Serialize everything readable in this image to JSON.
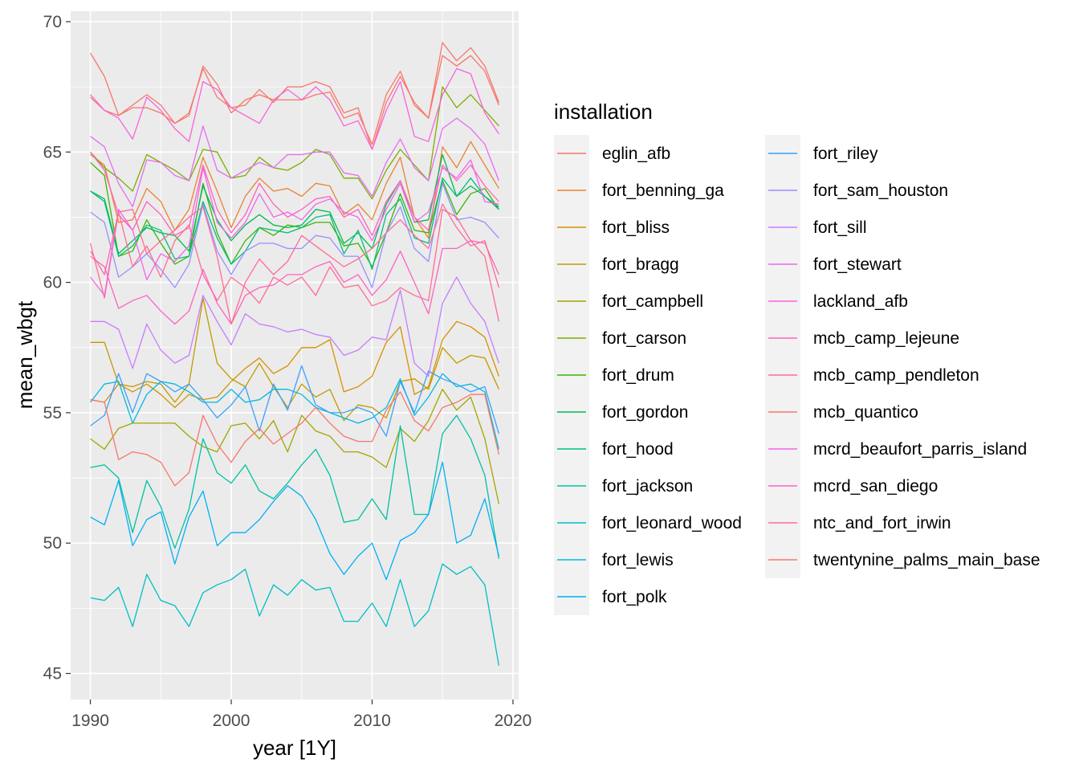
{
  "chart_data": {
    "type": "line",
    "xlabel": "year [1Y]",
    "ylabel": "mean_wbgt",
    "xlim": [
      1988.6,
      2020.4
    ],
    "ylim": [
      44.0,
      70.4
    ],
    "x_ticks": [
      1990,
      2000,
      2010,
      2020
    ],
    "y_ticks": [
      45,
      50,
      55,
      60,
      65,
      70
    ],
    "grid": true,
    "legend_title": "installation",
    "legend_position": "right",
    "x": [
      1990,
      1991,
      1992,
      1993,
      1994,
      1995,
      1996,
      1997,
      1998,
      1999,
      2000,
      2001,
      2002,
      2003,
      2004,
      2005,
      2006,
      2007,
      2008,
      2009,
      2010,
      2011,
      2012,
      2013,
      2014,
      2015,
      2016,
      2017,
      2018,
      2019
    ],
    "series": [
      {
        "name": "eglin_afb",
        "color": "#F8766D",
        "values": [
          67.1,
          66.6,
          66.4,
          66.8,
          67.2,
          66.8,
          66.1,
          66.5,
          68.2,
          67.1,
          66.7,
          66.8,
          67.4,
          66.9,
          67.5,
          67.5,
          67.7,
          67.5,
          66.5,
          66.7,
          65.1,
          66.9,
          67.9,
          66.9,
          66.3,
          69.2,
          68.5,
          69.0,
          68.3,
          66.9
        ]
      },
      {
        "name": "fort_benning_ga",
        "color": "#EA8331",
        "values": [
          64.9,
          64.5,
          62.3,
          62.4,
          63.6,
          63.1,
          62.0,
          62.8,
          64.8,
          63.5,
          62.1,
          63.3,
          64.0,
          63.5,
          63.6,
          63.3,
          63.8,
          63.7,
          62.6,
          63.0,
          62.4,
          63.8,
          64.8,
          62.5,
          61.7,
          65.2,
          64.4,
          65.4,
          64.5,
          63.6
        ]
      },
      {
        "name": "fort_bliss",
        "color": "#D89000",
        "values": [
          55.5,
          55.4,
          56.1,
          55.8,
          56.1,
          55.7,
          55.2,
          55.7,
          55.5,
          55.6,
          56.2,
          56.7,
          57.1,
          56.5,
          56.8,
          57.5,
          57.5,
          57.8,
          55.8,
          56.0,
          56.4,
          57.7,
          58.3,
          55.7,
          56.0,
          57.8,
          58.5,
          58.3,
          57.9,
          56.4
        ]
      },
      {
        "name": "fort_bragg",
        "color": "#C09B00",
        "values": [
          57.7,
          57.7,
          56.1,
          56.0,
          56.2,
          56.1,
          55.4,
          56.1,
          59.4,
          56.9,
          56.3,
          56.0,
          56.9,
          56.0,
          55.2,
          56.1,
          55.6,
          55.9,
          54.7,
          55.3,
          55.2,
          54.8,
          56.2,
          56.3,
          55.9,
          57.5,
          56.9,
          57.2,
          57.1,
          55.9
        ]
      },
      {
        "name": "fort_campbell",
        "color": "#A3A500",
        "values": [
          54.0,
          53.6,
          54.4,
          54.6,
          54.6,
          54.6,
          54.6,
          54.1,
          53.7,
          53.5,
          54.5,
          54.6,
          54.0,
          54.7,
          53.5,
          54.9,
          54.3,
          54.1,
          53.5,
          53.5,
          53.3,
          52.9,
          54.4,
          53.9,
          54.7,
          55.9,
          55.1,
          55.6,
          54.0,
          51.5
        ]
      },
      {
        "name": "fort_carson",
        "color": "#7CAE00",
        "values": [
          65.0,
          64.4,
          64.0,
          63.5,
          64.9,
          64.6,
          64.3,
          63.9,
          65.1,
          65.0,
          64.0,
          64.1,
          64.8,
          64.4,
          64.3,
          64.6,
          65.1,
          64.9,
          64.0,
          64.0,
          63.2,
          64.3,
          65.1,
          64.5,
          63.9,
          67.5,
          66.7,
          67.2,
          66.6,
          66.0
        ]
      },
      {
        "name": "fort_drum",
        "color": "#39B600",
        "values": [
          64.6,
          64.1,
          61.0,
          61.2,
          62.4,
          61.5,
          60.7,
          61.0,
          63.8,
          61.9,
          60.7,
          61.6,
          62.1,
          61.8,
          62.2,
          62.1,
          62.3,
          62.3,
          61.4,
          61.5,
          60.6,
          61.9,
          63.4,
          62.0,
          61.9,
          63.9,
          62.6,
          63.4,
          63.6,
          62.8
        ]
      },
      {
        "name": "fort_gordon",
        "color": "#00BB4E",
        "values": [
          63.5,
          63.2,
          61.1,
          61.6,
          62.1,
          61.9,
          61.8,
          61.2,
          63.7,
          62.4,
          61.6,
          62.2,
          62.6,
          62.2,
          62.1,
          62.2,
          62.8,
          62.7,
          61.5,
          61.9,
          61.3,
          63.0,
          63.9,
          62.3,
          62.4,
          64.9,
          63.3,
          63.7,
          63.3,
          62.8
        ]
      },
      {
        "name": "fort_hood",
        "color": "#00BF7D",
        "values": [
          63.5,
          63.1,
          61.0,
          61.4,
          62.2,
          62.0,
          60.9,
          61.0,
          63.1,
          61.7,
          60.7,
          61.2,
          62.1,
          62.0,
          61.9,
          62.1,
          62.5,
          62.6,
          61.1,
          62.0,
          60.5,
          62.6,
          63.2,
          61.7,
          61.5,
          64.0,
          63.3,
          64.0,
          63.3,
          62.9
        ]
      },
      {
        "name": "fort_jackson",
        "color": "#00C1A3",
        "values": [
          52.9,
          53.0,
          52.5,
          50.4,
          52.4,
          51.4,
          49.8,
          51.3,
          54.0,
          52.7,
          52.3,
          53.0,
          52.0,
          51.7,
          52.3,
          53.0,
          53.6,
          52.6,
          50.8,
          50.9,
          51.7,
          50.9,
          54.5,
          51.1,
          51.1,
          54.2,
          54.9,
          54.0,
          52.6,
          49.4
        ]
      },
      {
        "name": "fort_leonard_wood",
        "color": "#00BFC4",
        "values": [
          47.9,
          47.8,
          48.3,
          46.8,
          48.8,
          47.8,
          47.6,
          46.8,
          48.1,
          48.4,
          48.6,
          49.0,
          47.2,
          48.4,
          48.0,
          48.6,
          48.2,
          48.3,
          47.0,
          47.0,
          47.7,
          46.8,
          48.6,
          46.8,
          47.4,
          49.2,
          48.8,
          49.1,
          48.4,
          45.3
        ]
      },
      {
        "name": "fort_lewis",
        "color": "#00BAE0",
        "values": [
          55.4,
          56.1,
          56.2,
          54.6,
          55.7,
          56.2,
          56.1,
          55.8,
          55.4,
          55.4,
          55.9,
          55.4,
          55.5,
          55.9,
          55.9,
          55.7,
          55.2,
          55.0,
          54.8,
          54.6,
          54.8,
          55.2,
          56.3,
          54.9,
          55.6,
          56.5,
          56.0,
          56.1,
          55.8,
          53.6
        ]
      },
      {
        "name": "fort_polk",
        "color": "#00B0F6",
        "values": [
          51.0,
          50.7,
          52.4,
          49.9,
          50.9,
          51.2,
          49.2,
          51.0,
          52.0,
          49.9,
          50.4,
          50.4,
          50.9,
          51.6,
          52.2,
          51.8,
          50.9,
          49.6,
          48.8,
          49.5,
          50.0,
          48.6,
          50.1,
          50.4,
          51.1,
          53.1,
          50.0,
          50.3,
          51.7,
          49.5
        ]
      },
      {
        "name": "fort_riley",
        "color": "#35A2FF",
        "values": [
          54.5,
          54.9,
          56.5,
          55.0,
          56.5,
          56.2,
          55.8,
          56.1,
          55.5,
          54.8,
          55.3,
          56.0,
          54.3,
          56.1,
          55.1,
          56.8,
          55.3,
          55.0,
          55.0,
          55.2,
          55.0,
          54.1,
          56.2,
          55.0,
          56.6,
          56.3,
          56.1,
          55.8,
          56.0,
          54.2
        ]
      },
      {
        "name": "fort_sam_houston",
        "color": "#9590FF",
        "values": [
          62.7,
          62.3,
          60.2,
          60.6,
          61.1,
          60.5,
          59.8,
          60.7,
          63.0,
          61.2,
          60.3,
          61.2,
          61.5,
          61.5,
          61.3,
          61.3,
          61.8,
          61.7,
          61.0,
          61.0,
          59.8,
          61.9,
          62.9,
          61.3,
          60.8,
          63.8,
          62.4,
          62.5,
          62.3,
          61.7
        ]
      },
      {
        "name": "fort_sill",
        "color": "#C77CFF",
        "values": [
          58.5,
          58.5,
          58.2,
          56.7,
          58.4,
          57.4,
          56.9,
          57.2,
          59.5,
          58.5,
          57.6,
          58.8,
          58.4,
          58.3,
          58.1,
          58.2,
          58.0,
          57.9,
          57.2,
          57.4,
          57.9,
          57.8,
          59.7,
          56.9,
          56.4,
          59.2,
          60.2,
          59.2,
          58.5,
          56.9
        ]
      },
      {
        "name": "fort_stewart",
        "color": "#E76BF3",
        "values": [
          65.6,
          65.2,
          63.8,
          62.9,
          64.7,
          64.6,
          64.1,
          63.9,
          66.0,
          64.3,
          64.0,
          64.3,
          64.6,
          64.4,
          64.9,
          64.9,
          65.0,
          65.0,
          64.2,
          64.1,
          63.3,
          64.6,
          65.5,
          64.4,
          63.9,
          65.9,
          66.3,
          65.9,
          65.3,
          63.9
        ]
      },
      {
        "name": "lackland_afb",
        "color": "#FA62DB",
        "values": [
          67.2,
          66.6,
          66.3,
          65.5,
          67.1,
          66.6,
          65.9,
          65.4,
          67.7,
          67.4,
          66.7,
          66.4,
          66.1,
          67.0,
          67.4,
          67.0,
          67.5,
          67.0,
          66.0,
          66.2,
          65.1,
          66.6,
          67.7,
          65.6,
          65.4,
          67.2,
          68.2,
          68.0,
          66.5,
          65.7
        ]
      },
      {
        "name": "mcb_camp_lejeune",
        "color": "#FF62BC",
        "values": [
          65.0,
          64.3,
          62.6,
          62.0,
          63.1,
          62.6,
          61.8,
          62.1,
          64.5,
          62.8,
          61.9,
          62.6,
          63.8,
          63.0,
          62.5,
          62.8,
          63.2,
          63.3,
          62.5,
          62.8,
          61.8,
          63.1,
          63.9,
          62.5,
          62.0,
          64.5,
          63.9,
          64.5,
          63.7,
          63.1
        ]
      },
      {
        "name": "mcb_camp_pendleton",
        "color": "#FF6C91",
        "values": [
          61.5,
          59.4,
          62.7,
          60.6,
          61.4,
          60.2,
          61.6,
          62.2,
          60.3,
          59.3,
          60.2,
          59.8,
          59.2,
          60.2,
          59.9,
          60.2,
          59.5,
          60.6,
          59.8,
          59.9,
          59.1,
          59.3,
          59.8,
          59.5,
          59.3,
          62.8,
          62.5,
          61.6,
          61.0,
          58.5
        ]
      },
      {
        "name": "mcb_quantico",
        "color": "#F8766D",
        "values": [
          55.5,
          55.4,
          53.2,
          53.5,
          53.4,
          53.1,
          52.2,
          52.7,
          54.9,
          53.8,
          53.1,
          53.9,
          54.4,
          53.8,
          54.2,
          54.6,
          55.2,
          54.6,
          54.1,
          53.9,
          53.9,
          55.1,
          55.8,
          54.7,
          54.3,
          55.2,
          55.4,
          55.7,
          55.7,
          53.4
        ]
      },
      {
        "name": "mcrd_beaufort_parris_island",
        "color": "#F066EA",
        "values": [
          60.2,
          59.5,
          62.8,
          62.0,
          60.1,
          61.1,
          60.8,
          61.4,
          64.4,
          62.3,
          61.7,
          62.3,
          63.4,
          62.5,
          62.7,
          62.4,
          63.0,
          63.2,
          62.7,
          62.5,
          61.6,
          62.8,
          63.8,
          62.3,
          62.7,
          64.4,
          64.0,
          64.7,
          63.1,
          63.0
        ]
      },
      {
        "name": "mcrd_san_diego",
        "color": "#FF61C3",
        "values": [
          61.0,
          60.6,
          59.0,
          59.3,
          59.5,
          58.9,
          58.4,
          58.9,
          60.5,
          59.2,
          58.4,
          59.5,
          59.8,
          59.9,
          60.3,
          60.3,
          60.6,
          60.8,
          60.0,
          60.3,
          59.5,
          60.1,
          61.2,
          60.0,
          58.8,
          61.3,
          61.3,
          61.6,
          61.5,
          60.3
        ]
      },
      {
        "name": "ntc_and_fort_irwin",
        "color": "#FF6B96",
        "values": [
          61.2,
          60.3,
          62.7,
          62.8,
          61.1,
          61.6,
          62.0,
          62.5,
          62.9,
          61.0,
          58.4,
          60.0,
          60.9,
          60.3,
          60.8,
          61.8,
          61.4,
          61.0,
          60.6,
          60.9,
          61.3,
          61.9,
          62.4,
          61.8,
          61.3,
          63.0,
          62.1,
          61.4,
          61.6,
          59.8
        ]
      },
      {
        "name": "twentynine_palms_main_base",
        "color": "#F8766D",
        "values": [
          68.8,
          67.9,
          66.4,
          66.7,
          66.7,
          66.5,
          66.1,
          66.4,
          68.3,
          67.6,
          66.5,
          67.0,
          67.2,
          67.0,
          67.0,
          67.0,
          67.2,
          67.3,
          66.3,
          66.5,
          65.3,
          67.2,
          68.1,
          66.8,
          66.3,
          68.7,
          68.3,
          68.7,
          68.1,
          66.8
        ]
      }
    ]
  }
}
